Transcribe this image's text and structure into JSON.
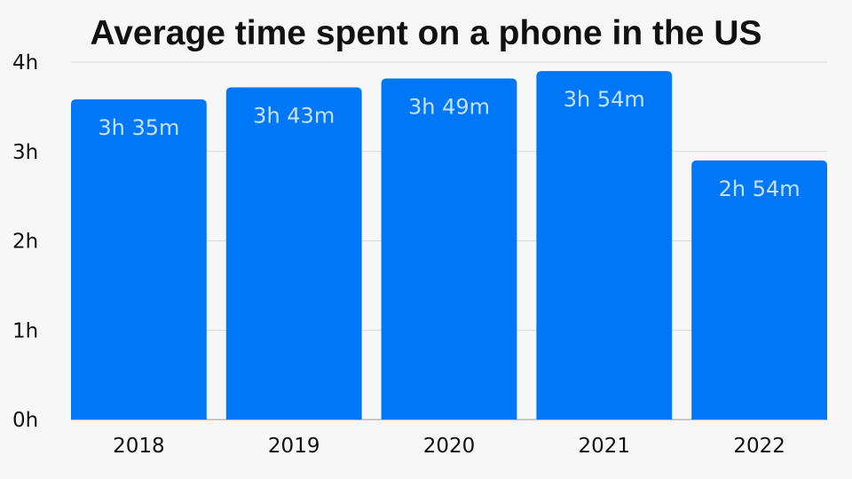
{
  "chart_data": {
    "type": "bar",
    "title": "Average time spent on a phone in the US",
    "xlabel": "",
    "ylabel": "",
    "categories": [
      "2018",
      "2019",
      "2020",
      "2021",
      "2022"
    ],
    "values": [
      215,
      223,
      229,
      234,
      174
    ],
    "value_unit": "minutes",
    "data_labels": [
      "3h 35m",
      "3h 43m",
      "3h 49m",
      "3h 54m",
      "2h 54m"
    ],
    "yticks": [
      {
        "value": 0,
        "label": "0h"
      },
      {
        "value": 60,
        "label": "1h"
      },
      {
        "value": 120,
        "label": "2h"
      },
      {
        "value": 180,
        "label": "3h"
      },
      {
        "value": 240,
        "label": "4h"
      }
    ],
    "ylim": [
      0,
      240
    ],
    "grid": true,
    "legend": "none",
    "colors": {
      "bar": "#0077f7",
      "background": "#f7f7f7"
    }
  }
}
